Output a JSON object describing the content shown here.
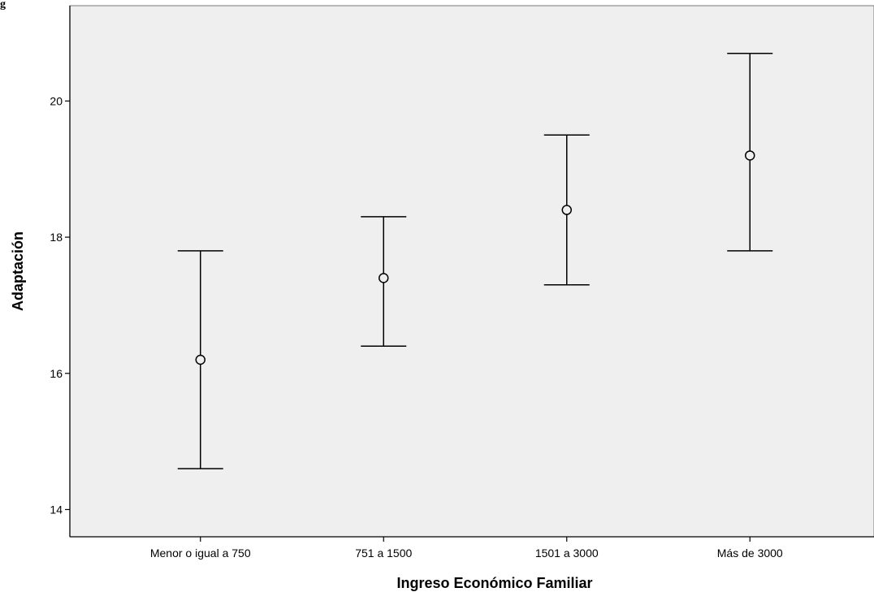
{
  "page_marker": "g",
  "colors": {
    "plot_background": "#efefef",
    "ink": "#000000"
  },
  "chart_data": {
    "type": "errorbar",
    "title": "",
    "xlabel": "Ingreso Económico Familiar",
    "ylabel": "Adaptación",
    "categories": [
      "Menor o igual a 750",
      "751 a 1500",
      "1501 a 3000",
      "Más de 3000"
    ],
    "series": [
      {
        "mean": [
          16.2,
          17.4,
          18.4,
          19.2
        ],
        "lower": [
          14.6,
          16.4,
          17.3,
          17.8
        ],
        "upper": [
          17.8,
          18.3,
          19.5,
          20.7
        ]
      }
    ],
    "ylim": [
      13.6,
      21.4
    ],
    "yticks": [
      14,
      16,
      18,
      20
    ],
    "grid": false,
    "legend": "none"
  }
}
